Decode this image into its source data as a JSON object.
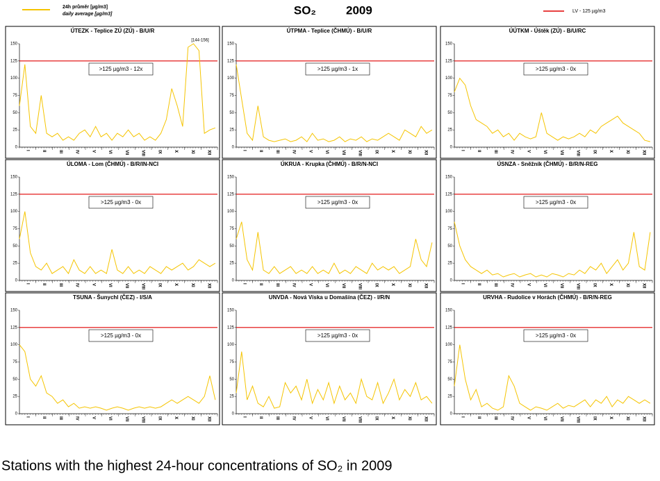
{
  "header": {
    "title": "SO₂",
    "year": "2009",
    "series_label": "24h průměr [µg/m3]",
    "series_label_en": "daily average [µg/m3]",
    "limit_label": "LV  - 125 µg/m3"
  },
  "caption": "Stations with the highest 24-hour concentrations of SO₂ in 2009",
  "months": [
    "I",
    "II",
    "III",
    "IV",
    "V",
    "VI",
    "VII",
    "VIII",
    "IX",
    "X",
    "XI",
    "XII"
  ],
  "chart_data": [
    {
      "type": "line",
      "title": "ÚTEZK - Teplice ZÚ (ZÚ) - B/U/R",
      "annotation": ">125 µg/m3 - 12x",
      "note": "[144-156]",
      "color": "#f5c400",
      "limit": 125,
      "limit_color": "#e00000",
      "xlim": [
        1,
        365
      ],
      "ylim": [
        0,
        150
      ],
      "yticks": [
        0,
        25,
        50,
        75,
        100,
        125,
        150
      ],
      "x": [
        1,
        11,
        21,
        31,
        41,
        51,
        61,
        71,
        81,
        91,
        101,
        111,
        121,
        131,
        141,
        151,
        161,
        171,
        181,
        191,
        201,
        211,
        221,
        231,
        241,
        251,
        261,
        271,
        281,
        291,
        301,
        311,
        321,
        331,
        341,
        351,
        361
      ],
      "values": [
        60,
        120,
        30,
        20,
        75,
        20,
        15,
        20,
        10,
        15,
        10,
        20,
        25,
        15,
        30,
        15,
        20,
        10,
        20,
        15,
        25,
        15,
        20,
        10,
        15,
        10,
        20,
        40,
        85,
        60,
        30,
        145,
        150,
        140,
        20,
        25,
        28
      ]
    },
    {
      "type": "line",
      "title": "ÚTPMA - Teplice (ČHMÚ) - B/U/R",
      "annotation": ">125 µg/m3 - 1x",
      "color": "#f5c400",
      "limit": 125,
      "limit_color": "#e00000",
      "xlim": [
        1,
        365
      ],
      "ylim": [
        0,
        150
      ],
      "yticks": [
        0,
        25,
        50,
        75,
        100,
        125,
        150
      ],
      "x": [
        1,
        11,
        21,
        31,
        41,
        51,
        61,
        71,
        81,
        91,
        101,
        111,
        121,
        131,
        141,
        151,
        161,
        171,
        181,
        191,
        201,
        211,
        221,
        231,
        241,
        251,
        261,
        271,
        281,
        291,
        301,
        311,
        321,
        331,
        341,
        351,
        361
      ],
      "values": [
        120,
        70,
        20,
        10,
        60,
        15,
        10,
        8,
        10,
        12,
        8,
        10,
        15,
        8,
        20,
        10,
        12,
        8,
        10,
        15,
        8,
        12,
        10,
        15,
        8,
        12,
        10,
        15,
        20,
        15,
        10,
        25,
        20,
        15,
        30,
        20,
        25
      ]
    },
    {
      "type": "line",
      "title": "ÚÚTKM - Úštěk (ZÚ) - B/U/RC",
      "annotation": ">125 µg/m3 - 0x",
      "color": "#f5c400",
      "limit": 125,
      "limit_color": "#e00000",
      "xlim": [
        1,
        365
      ],
      "ylim": [
        0,
        150
      ],
      "yticks": [
        0,
        25,
        50,
        75,
        100,
        125,
        150
      ],
      "x": [
        1,
        11,
        21,
        31,
        41,
        51,
        61,
        71,
        81,
        91,
        101,
        111,
        121,
        131,
        141,
        151,
        161,
        171,
        181,
        191,
        201,
        211,
        221,
        231,
        241,
        251,
        261,
        271,
        281,
        291,
        301,
        311,
        321,
        331,
        341,
        351,
        361
      ],
      "values": [
        80,
        100,
        90,
        60,
        40,
        35,
        30,
        20,
        25,
        15,
        20,
        10,
        20,
        15,
        12,
        15,
        50,
        20,
        15,
        10,
        15,
        12,
        15,
        20,
        15,
        25,
        20,
        30,
        35,
        40,
        45,
        35,
        30,
        25,
        20,
        10,
        8
      ]
    },
    {
      "type": "line",
      "title": "ÚLOMA - Lom (ČHMÚ) - B/R/IN-NCI",
      "annotation": ">125 µg/m3 - 0x",
      "color": "#f5c400",
      "limit": 125,
      "limit_color": "#e00000",
      "xlim": [
        1,
        365
      ],
      "ylim": [
        0,
        150
      ],
      "yticks": [
        0,
        25,
        50,
        75,
        100,
        125,
        150
      ],
      "x": [
        1,
        11,
        21,
        31,
        41,
        51,
        61,
        71,
        81,
        91,
        101,
        111,
        121,
        131,
        141,
        151,
        161,
        171,
        181,
        191,
        201,
        211,
        221,
        231,
        241,
        251,
        261,
        271,
        281,
        291,
        301,
        311,
        321,
        331,
        341,
        351,
        361
      ],
      "values": [
        60,
        100,
        40,
        20,
        15,
        25,
        10,
        15,
        20,
        10,
        30,
        15,
        10,
        20,
        10,
        15,
        10,
        45,
        15,
        10,
        20,
        10,
        15,
        10,
        20,
        15,
        10,
        20,
        15,
        20,
        25,
        15,
        20,
        30,
        25,
        20,
        25
      ]
    },
    {
      "type": "line",
      "title": "ÚKRUA - Krupka (ČHMÚ) - B/R/N-NCI",
      "annotation": ">125 µg/m3 - 0x",
      "color": "#f5c400",
      "limit": 125,
      "limit_color": "#e00000",
      "xlim": [
        1,
        365
      ],
      "ylim": [
        0,
        150
      ],
      "yticks": [
        0,
        25,
        50,
        75,
        100,
        125,
        150
      ],
      "x": [
        1,
        11,
        21,
        31,
        41,
        51,
        61,
        71,
        81,
        91,
        101,
        111,
        121,
        131,
        141,
        151,
        161,
        171,
        181,
        191,
        201,
        211,
        221,
        231,
        241,
        251,
        261,
        271,
        281,
        291,
        301,
        311,
        321,
        331,
        341,
        351,
        361
      ],
      "values": [
        60,
        85,
        30,
        15,
        70,
        15,
        10,
        20,
        10,
        15,
        20,
        10,
        15,
        10,
        20,
        10,
        15,
        10,
        25,
        10,
        15,
        10,
        20,
        15,
        10,
        25,
        15,
        20,
        15,
        20,
        10,
        15,
        20,
        60,
        30,
        20,
        55
      ]
    },
    {
      "type": "line",
      "title": "ÚSNZA - Sněžník (ČHMÚ) - B/R/N-REG",
      "annotation": ">125 µg/m3 - 0x",
      "color": "#f5c400",
      "limit": 125,
      "limit_color": "#e00000",
      "xlim": [
        1,
        365
      ],
      "ylim": [
        0,
        150
      ],
      "yticks": [
        0,
        25,
        50,
        75,
        100,
        125,
        150
      ],
      "x": [
        1,
        11,
        21,
        31,
        41,
        51,
        61,
        71,
        81,
        91,
        101,
        111,
        121,
        131,
        141,
        151,
        161,
        171,
        181,
        191,
        201,
        211,
        221,
        231,
        241,
        251,
        261,
        271,
        281,
        291,
        301,
        311,
        321,
        331,
        341,
        351,
        361
      ],
      "values": [
        85,
        50,
        30,
        20,
        15,
        10,
        15,
        8,
        10,
        5,
        8,
        10,
        5,
        8,
        10,
        5,
        8,
        5,
        10,
        8,
        5,
        10,
        8,
        15,
        10,
        20,
        15,
        25,
        10,
        20,
        30,
        15,
        25,
        70,
        20,
        15,
        70
      ]
    },
    {
      "type": "line",
      "title": "TSUNA - Šunychl (ČEZ) - I/S/A",
      "annotation": ">125 µg/m3 - 0x",
      "color": "#f5c400",
      "limit": 125,
      "limit_color": "#e00000",
      "xlim": [
        1,
        365
      ],
      "ylim": [
        0,
        150
      ],
      "yticks": [
        0,
        25,
        50,
        75,
        100,
        125,
        150
      ],
      "x": [
        1,
        11,
        21,
        31,
        41,
        51,
        61,
        71,
        81,
        91,
        101,
        111,
        121,
        131,
        141,
        151,
        161,
        171,
        181,
        191,
        201,
        211,
        221,
        231,
        241,
        251,
        261,
        271,
        281,
        291,
        301,
        311,
        321,
        331,
        341,
        351,
        361
      ],
      "values": [
        100,
        90,
        50,
        40,
        55,
        30,
        25,
        15,
        20,
        10,
        15,
        8,
        10,
        8,
        10,
        8,
        5,
        8,
        10,
        8,
        5,
        8,
        10,
        8,
        10,
        8,
        10,
        15,
        20,
        15,
        20,
        25,
        20,
        15,
        25,
        55,
        20
      ]
    },
    {
      "type": "line",
      "title": "UNVDA - Nová Víska u Domašína (ČEZ) - I/R/N",
      "annotation": ">125 µg/m3 - 0x",
      "color": "#f5c400",
      "limit": 125,
      "limit_color": "#e00000",
      "xlim": [
        1,
        365
      ],
      "ylim": [
        0,
        150
      ],
      "yticks": [
        0,
        25,
        50,
        75,
        100,
        125,
        150
      ],
      "x": [
        1,
        11,
        21,
        31,
        41,
        51,
        61,
        71,
        81,
        91,
        101,
        111,
        121,
        131,
        141,
        151,
        161,
        171,
        181,
        191,
        201,
        211,
        221,
        231,
        241,
        251,
        261,
        271,
        281,
        291,
        301,
        311,
        321,
        331,
        341,
        351,
        361
      ],
      "values": [
        30,
        90,
        20,
        40,
        15,
        10,
        25,
        8,
        10,
        45,
        30,
        40,
        20,
        50,
        15,
        35,
        20,
        45,
        15,
        40,
        20,
        30,
        15,
        50,
        25,
        20,
        45,
        15,
        30,
        50,
        20,
        35,
        25,
        45,
        20,
        25,
        15
      ]
    },
    {
      "type": "line",
      "title": "URVHA - Rudolice v Horách (ČHMÚ) - B/R/N-REG",
      "annotation": ">125 µg/m3 - 0x",
      "color": "#f5c400",
      "limit": 125,
      "limit_color": "#e00000",
      "xlim": [
        1,
        365
      ],
      "ylim": [
        0,
        150
      ],
      "yticks": [
        0,
        25,
        50,
        75,
        100,
        125,
        150
      ],
      "x": [
        1,
        11,
        21,
        31,
        41,
        51,
        61,
        71,
        81,
        91,
        101,
        111,
        121,
        131,
        141,
        151,
        161,
        171,
        181,
        191,
        201,
        211,
        221,
        231,
        241,
        251,
        261,
        271,
        281,
        291,
        301,
        311,
        321,
        331,
        341,
        351,
        361
      ],
      "values": [
        40,
        100,
        50,
        20,
        35,
        10,
        15,
        8,
        5,
        10,
        55,
        40,
        15,
        10,
        5,
        10,
        8,
        5,
        10,
        15,
        8,
        12,
        10,
        15,
        20,
        10,
        20,
        15,
        25,
        10,
        20,
        15,
        25,
        20,
        15,
        20,
        15
      ]
    }
  ]
}
